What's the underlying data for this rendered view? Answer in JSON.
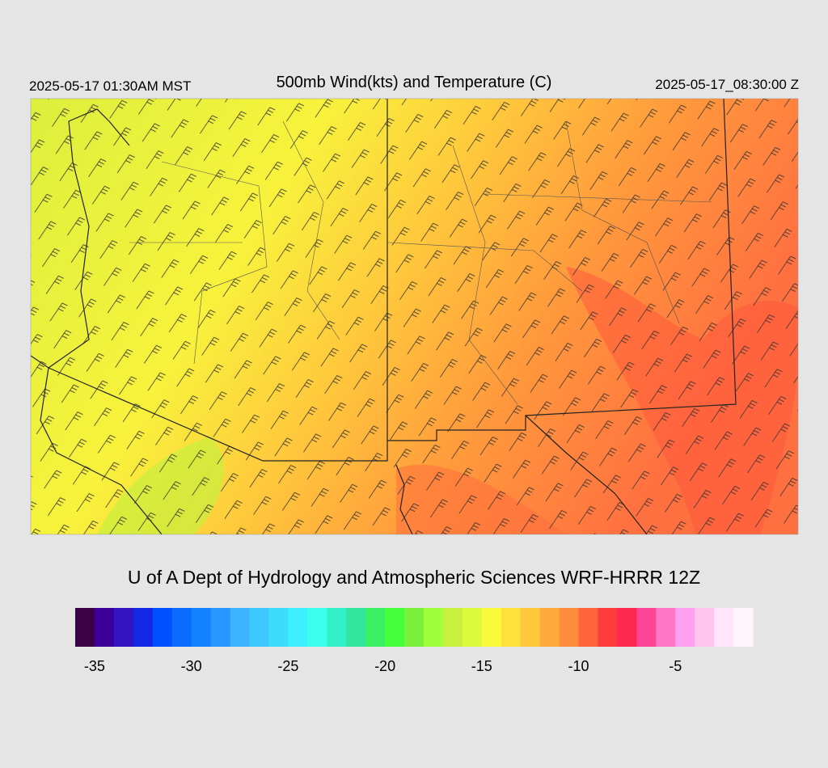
{
  "header": {
    "left": "2025-05-17 01:30AM MST",
    "title": "500mb Wind(kts) and Temperature (C)",
    "right": "2025-05-17_08:30:00 Z"
  },
  "credit": "U of A Dept of Hydrology and Atmospheric Sciences WRF-HRRR 12Z",
  "colorbar": {
    "range": [
      -36,
      -1
    ],
    "ticks": [
      -35,
      -30,
      -25,
      -20,
      -15,
      -10,
      -5
    ],
    "colors": [
      "#3b0045",
      "#3c0099",
      "#3214c0",
      "#1428e6",
      "#0050ff",
      "#0a6cff",
      "#1482ff",
      "#2896ff",
      "#3cb4ff",
      "#3cc8ff",
      "#3cdcff",
      "#3cf0ff",
      "#3cfff0",
      "#32f0c8",
      "#32e6a0",
      "#3cf064",
      "#46ff3c",
      "#78f03c",
      "#a0ff3c",
      "#c8f03c",
      "#dcfa3c",
      "#fafa3c",
      "#ffe13c",
      "#ffc83c",
      "#ffaa3c",
      "#ff8c3c",
      "#ff643c",
      "#ff3c3c",
      "#ff2850",
      "#ff4696",
      "#ff78c8",
      "#ffa0f0",
      "#ffc3f0",
      "#ffe6fa",
      "#fff5fc"
    ]
  }
}
